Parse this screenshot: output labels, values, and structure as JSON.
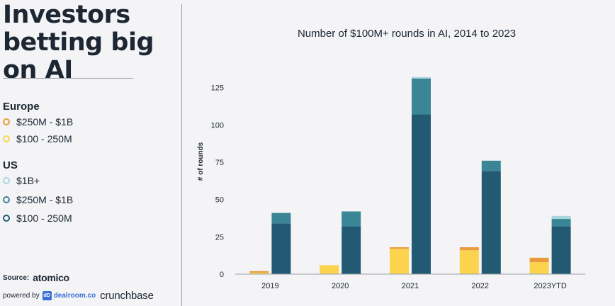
{
  "headline": "Investors\nbetting big on AI",
  "legend": {
    "europe": {
      "title": "Europe",
      "items": [
        {
          "label": "$250M - $1B",
          "color": "#e89a3c"
        },
        {
          "label": "$100 - 250M",
          "color": "#fbd34d"
        }
      ]
    },
    "us": {
      "title": "US",
      "items": [
        {
          "label": "$1B+",
          "color": "#a9d6dc"
        },
        {
          "label": "$250M - $1B",
          "color": "#3a8596"
        },
        {
          "label": "$100 - 250M",
          "color": "#235a73"
        }
      ]
    }
  },
  "source": {
    "prefix": "Source:",
    "brand": "atomico"
  },
  "powered": {
    "prefix": "powered by",
    "icon_text": "dD",
    "dealroom": "dealroom.co",
    "crunchbase": "crunchbase"
  },
  "chart_data": {
    "type": "bar",
    "stacked": true,
    "grouped": [
      "Europe",
      "US"
    ],
    "title": "Number of $100M+ rounds in AI, 2014 to 2023",
    "xlabel": "",
    "ylabel": "# of rounds",
    "ylim": [
      0,
      140
    ],
    "yticks": [
      0,
      25,
      50,
      75,
      100,
      125
    ],
    "categories": [
      "2019",
      "2020",
      "2021",
      "2022",
      "2023YTD"
    ],
    "groups": [
      {
        "name": "Europe",
        "series": [
          {
            "name": "$100 - 250M",
            "color": "#fbd34d",
            "values": [
              1,
              6,
              17,
              16,
              8
            ]
          },
          {
            "name": "$250M - $1B",
            "color": "#e89a3c",
            "values": [
              1,
              0,
              1,
              2,
              3
            ]
          }
        ]
      },
      {
        "name": "US",
        "series": [
          {
            "name": "$100 - 250M",
            "color": "#235a73",
            "values": [
              34,
              32,
              107,
              69,
              32
            ]
          },
          {
            "name": "$250M - $1B",
            "color": "#3a8596",
            "values": [
              7,
              10,
              24,
              7,
              5
            ]
          },
          {
            "name": "$1B+",
            "color": "#a9d6dc",
            "values": [
              0,
              0,
              1,
              0,
              2
            ]
          }
        ]
      }
    ]
  }
}
